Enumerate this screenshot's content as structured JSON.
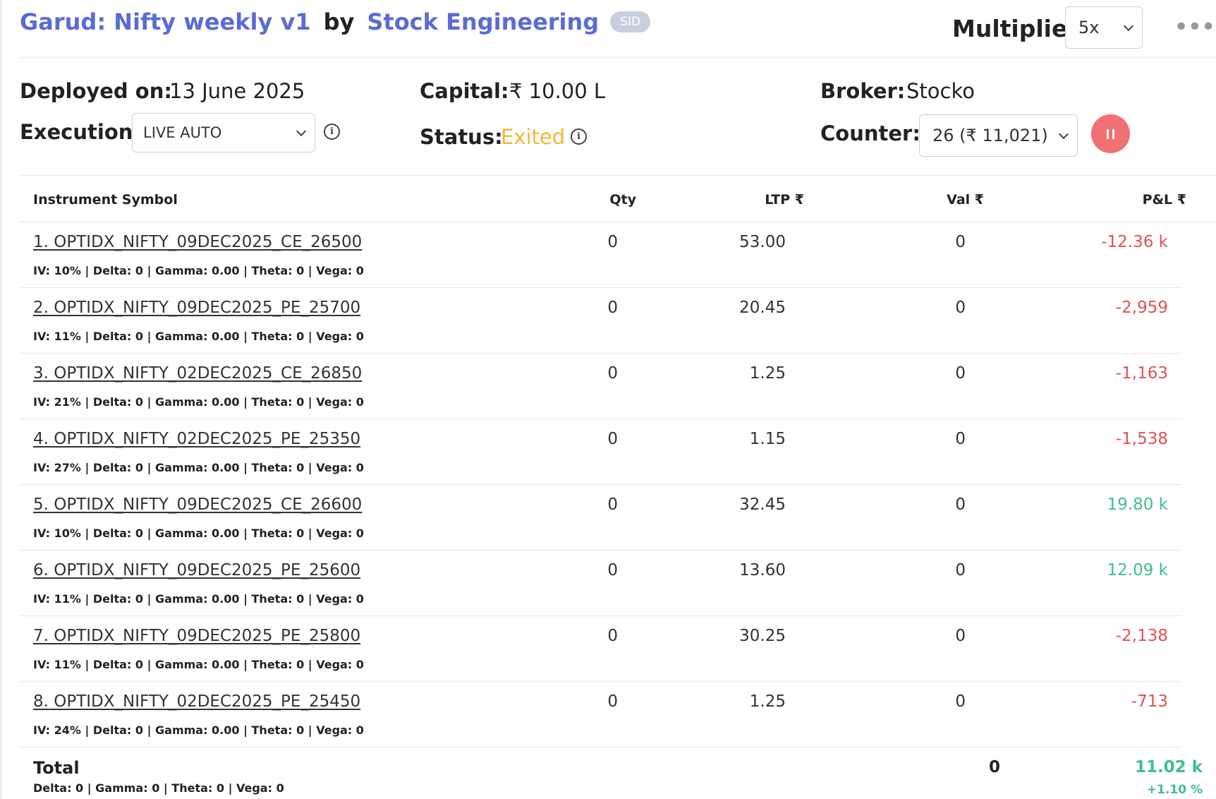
{
  "header": {
    "strategy_name": "Garud: Nifty weekly v1",
    "by_label": "by",
    "author": "Stock Engineering",
    "badge": "SID",
    "multiplier_label": "Multiplier:",
    "multiplier_value": "5x",
    "more_icon": "more-horizontal-icon"
  },
  "info": {
    "deployed_label": "Deployed on:",
    "deployed_value": "13 June 2025",
    "capital_label": "Capital:",
    "capital_value": "₹ 10.00 L",
    "broker_label": "Broker:",
    "broker_value": "Stocko",
    "execution_label": "Execution:",
    "execution_value": "LIVE AUTO",
    "status_label": "Status:",
    "status_value": "Exited",
    "status_color": "#f3b731",
    "counter_label": "Counter:",
    "counter_value": "26 (₹ 11,021)",
    "info_glyph": "i",
    "pause_button_color": "#f07173"
  },
  "table": {
    "columns": [
      "Instrument Symbol",
      "Qty",
      "LTP ₹",
      "Val ₹",
      "P&L ₹"
    ],
    "rows": [
      {
        "symbol": "1. OPTIDX_NIFTY_09DEC2025_CE_26500",
        "greeks": "IV: 10% | Delta: 0 | Gamma: 0.00 | Theta: 0 | Vega: 0",
        "qty": "0",
        "ltp": "53.00",
        "val": "0",
        "pnl": "-12.36 k",
        "pnl_sign": "neg"
      },
      {
        "symbol": "2. OPTIDX_NIFTY_09DEC2025_PE_25700",
        "greeks": "IV: 11% | Delta: 0 | Gamma: 0.00 | Theta: 0 | Vega: 0",
        "qty": "0",
        "ltp": "20.45",
        "val": "0",
        "pnl": "-2,959",
        "pnl_sign": "neg"
      },
      {
        "symbol": "3. OPTIDX_NIFTY_02DEC2025_CE_26850",
        "greeks": "IV: 21% | Delta: 0 | Gamma: 0.00 | Theta: 0 | Vega: 0",
        "qty": "0",
        "ltp": "1.25",
        "val": "0",
        "pnl": "-1,163",
        "pnl_sign": "neg"
      },
      {
        "symbol": "4. OPTIDX_NIFTY_02DEC2025_PE_25350",
        "greeks": "IV: 27% | Delta: 0 | Gamma: 0.00 | Theta: 0 | Vega: 0",
        "qty": "0",
        "ltp": "1.15",
        "val": "0",
        "pnl": "-1,538",
        "pnl_sign": "neg"
      },
      {
        "symbol": "5. OPTIDX_NIFTY_09DEC2025_CE_26600",
        "greeks": "IV: 10% | Delta: 0 | Gamma: 0.00 | Theta: 0 | Vega: 0",
        "qty": "0",
        "ltp": "32.45",
        "val": "0",
        "pnl": "19.80 k",
        "pnl_sign": "pos"
      },
      {
        "symbol": "6. OPTIDX_NIFTY_09DEC2025_PE_25600",
        "greeks": "IV: 11% | Delta: 0 | Gamma: 0.00 | Theta: 0 | Vega: 0",
        "qty": "0",
        "ltp": "13.60",
        "val": "0",
        "pnl": "12.09 k",
        "pnl_sign": "pos"
      },
      {
        "symbol": "7. OPTIDX_NIFTY_09DEC2025_PE_25800",
        "greeks": "IV: 11% | Delta: 0 | Gamma: 0.00 | Theta: 0 | Vega: 0",
        "qty": "0",
        "ltp": "30.25",
        "val": "0",
        "pnl": "-2,138",
        "pnl_sign": "neg"
      },
      {
        "symbol": "8. OPTIDX_NIFTY_02DEC2025_PE_25450",
        "greeks": "IV: 24% | Delta: 0 | Gamma: 0.00 | Theta: 0 | Vega: 0",
        "qty": "0",
        "ltp": "1.25",
        "val": "0",
        "pnl": "-713",
        "pnl_sign": "neg"
      }
    ],
    "total": {
      "label": "Total",
      "greeks": "Delta: 0 | Gamma: 0  | Theta: 0 | Vega: 0",
      "val": "0",
      "pnl": "11.02 k",
      "pnl_pct": "+1.10 %"
    },
    "colors": {
      "negative": "#e05252",
      "positive": "#3fbf8a"
    }
  }
}
